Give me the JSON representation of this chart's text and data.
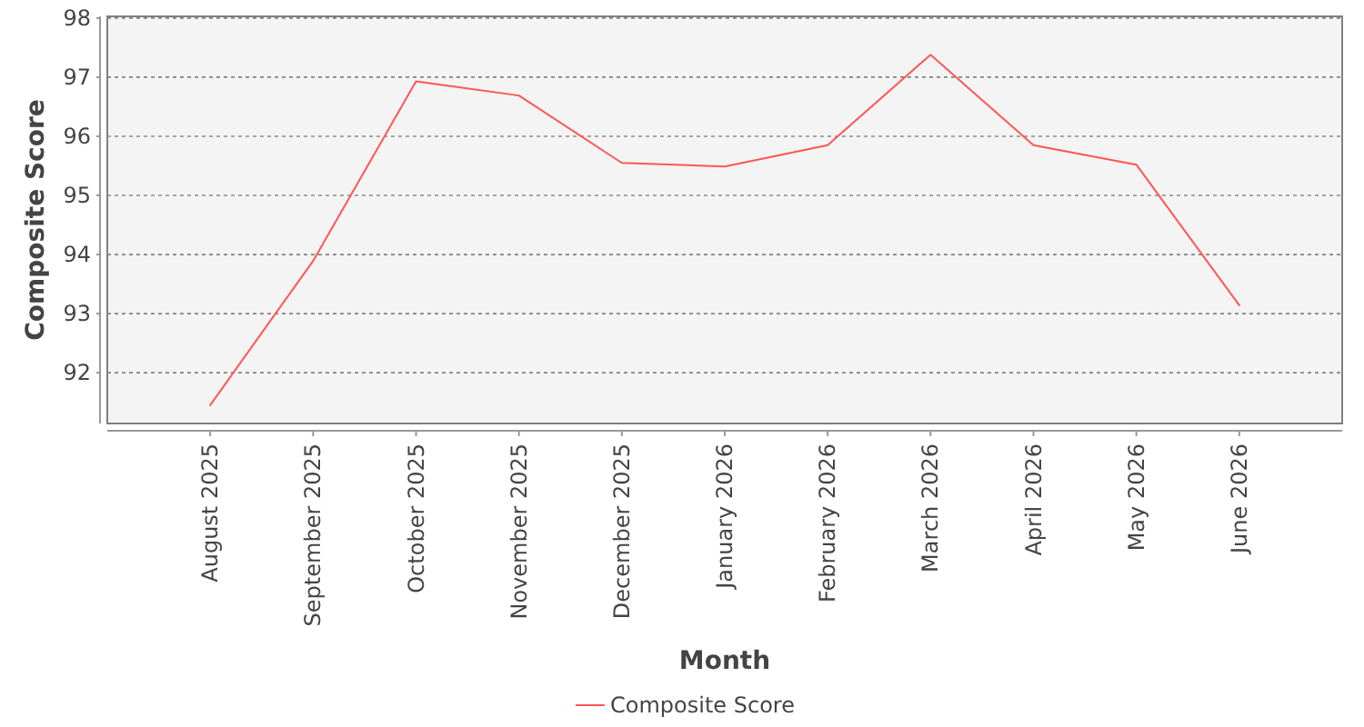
{
  "chart_data": {
    "type": "line",
    "xlabel": "Month",
    "ylabel": "Composite Score",
    "categories": [
      "August 2025",
      "September 2025",
      "October 2025",
      "November 2025",
      "December 2025",
      "January 2026",
      "February 2026",
      "March 2026",
      "April 2026",
      "May 2026",
      "June 2026"
    ],
    "series": [
      {
        "name": "Composite Score",
        "color": "#ff5555",
        "values": [
          91.45,
          93.89,
          96.93,
          96.69,
          95.55,
          95.49,
          95.85,
          97.38,
          95.85,
          95.52,
          93.14
        ]
      }
    ],
    "ylim": [
      91.14,
      98.03
    ],
    "yticks": [
      92,
      93,
      94,
      95,
      96,
      97,
      98
    ],
    "grid": "y",
    "legend": "bottom"
  }
}
